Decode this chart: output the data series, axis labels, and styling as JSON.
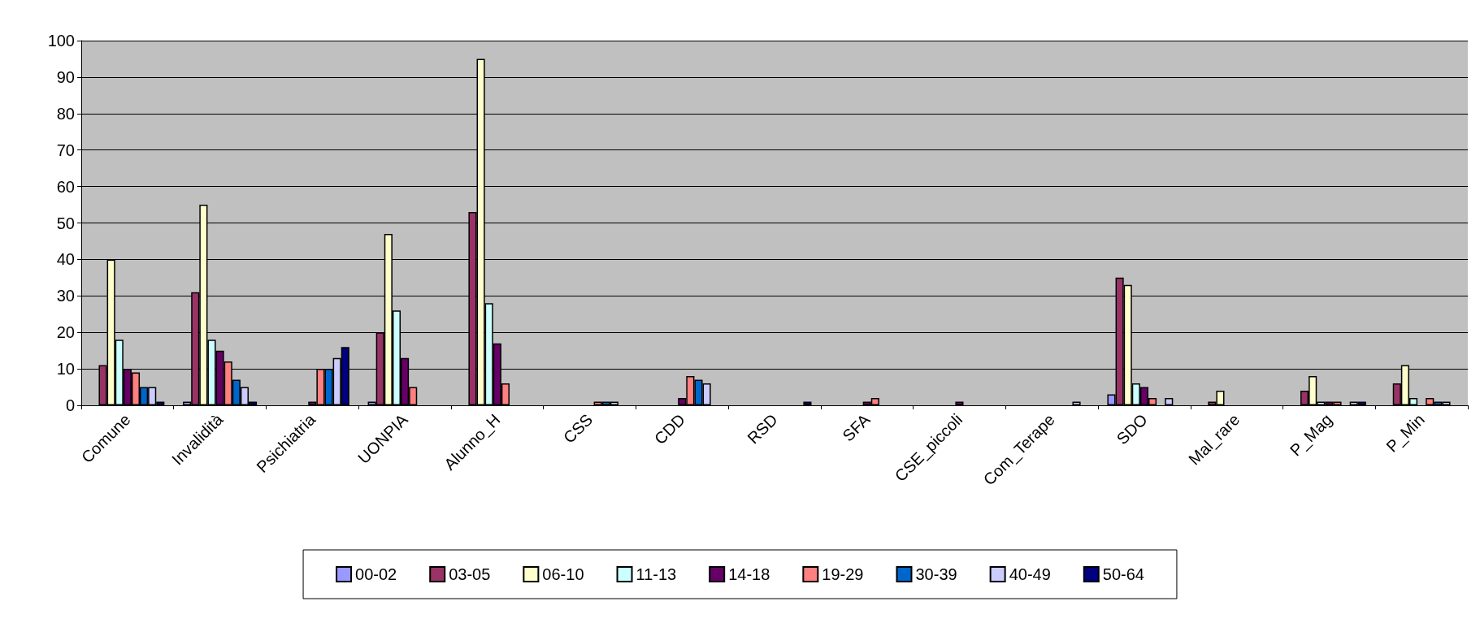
{
  "chart_data": {
    "type": "bar",
    "categories": [
      "Comune",
      "Invalidità",
      "Psichiatria",
      "UONPIA",
      "Alunno_H",
      "CSS",
      "CDD",
      "RSD",
      "SFA",
      "CSE_piccoli",
      "Com_Terape",
      "SDO",
      "Mal_rare",
      "P_Mag",
      "P_Min"
    ],
    "series": [
      {
        "name": "00-02",
        "color": "#9999ff",
        "values": [
          null,
          1,
          null,
          1,
          null,
          null,
          null,
          null,
          null,
          null,
          null,
          3,
          null,
          null,
          null
        ]
      },
      {
        "name": "03-05",
        "color": "#993366",
        "values": [
          11,
          31,
          null,
          20,
          53,
          null,
          null,
          null,
          null,
          null,
          null,
          35,
          1,
          4,
          6
        ]
      },
      {
        "name": "06-10",
        "color": "#ffffcc",
        "values": [
          40,
          55,
          null,
          47,
          95,
          null,
          null,
          null,
          null,
          null,
          null,
          33,
          4,
          8,
          11
        ]
      },
      {
        "name": "11-13",
        "color": "#ccffff",
        "values": [
          18,
          18,
          null,
          26,
          28,
          null,
          null,
          null,
          null,
          null,
          null,
          6,
          null,
          1,
          2
        ]
      },
      {
        "name": "14-18",
        "color": "#660066",
        "values": [
          10,
          15,
          1,
          13,
          17,
          null,
          2,
          null,
          1,
          1,
          null,
          5,
          null,
          1,
          null
        ]
      },
      {
        "name": "19-29",
        "color": "#ff8080",
        "values": [
          9,
          12,
          10,
          5,
          6,
          1,
          8,
          null,
          2,
          null,
          null,
          2,
          null,
          1,
          2
        ]
      },
      {
        "name": "30-39",
        "color": "#0066cc",
        "values": [
          5,
          7,
          10,
          null,
          null,
          1,
          7,
          null,
          null,
          null,
          null,
          null,
          null,
          null,
          1
        ]
      },
      {
        "name": "40-49",
        "color": "#ccccff",
        "values": [
          5,
          5,
          13,
          null,
          null,
          1,
          6,
          null,
          null,
          null,
          1,
          2,
          null,
          1,
          1
        ]
      },
      {
        "name": "50-64",
        "color": "#000080",
        "values": [
          1,
          1,
          16,
          null,
          null,
          null,
          null,
          1,
          null,
          null,
          null,
          null,
          null,
          1,
          null
        ]
      }
    ],
    "ylim": [
      0,
      100
    ],
    "yticks": [
      0,
      10,
      20,
      30,
      40,
      50,
      60,
      70,
      80,
      90,
      100
    ],
    "grid": "y",
    "legend": "bottom"
  }
}
